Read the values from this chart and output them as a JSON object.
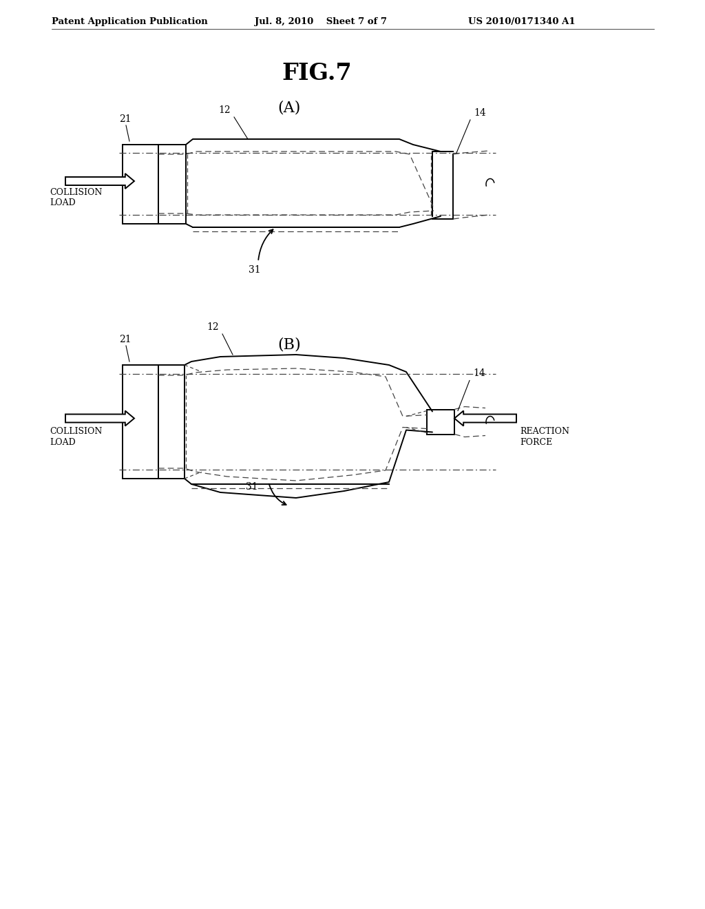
{
  "background_color": "#ffffff",
  "header_left": "Patent Application Publication",
  "header_center": "Jul. 8, 2010    Sheet 7 of 7",
  "header_right": "US 2010/0171340 A1",
  "fig_title": "FIG.7",
  "sub_A": "(A)",
  "sub_B": "(B)",
  "line_color": "#000000",
  "dash_color": "#444444",
  "lw_main": 1.4,
  "lw_thin": 0.9
}
